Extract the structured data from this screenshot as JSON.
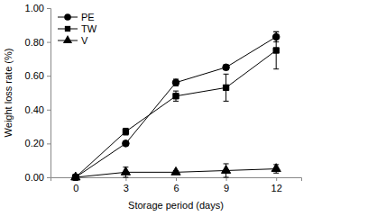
{
  "chart_data": {
    "type": "line",
    "x_label": "Storage period (days)",
    "y_label": "Weight loss rate (%)",
    "categories": [
      "0",
      "3",
      "6",
      "9",
      "12"
    ],
    "ylim": [
      0,
      1
    ],
    "yticks": [
      {
        "value": 0,
        "label": "0.00"
      },
      {
        "value": 0.2,
        "label": "0.20"
      },
      {
        "value": 0.4,
        "label": "0.40"
      },
      {
        "value": 0.6,
        "label": "0.60"
      },
      {
        "value": 0.8,
        "label": "0.80"
      },
      {
        "value": 1,
        "label": "1.00"
      }
    ],
    "grid": false,
    "legend": "top-left",
    "series": [
      {
        "name": "PE",
        "color": "#000000",
        "marker": "circle",
        "line_style": "solid",
        "values": [
          0,
          0.2,
          0.56,
          0.65,
          0.83
        ],
        "errors": [
          0,
          0.01,
          0.02,
          0.015,
          0.03
        ]
      },
      {
        "name": "TW",
        "color": "#000000",
        "marker": "square",
        "line_style": "solid",
        "values": [
          0,
          0.27,
          0.48,
          0.53,
          0.75
        ],
        "errors": [
          0,
          0.02,
          0.03,
          0.08,
          0.11
        ]
      },
      {
        "name": "V",
        "color": "#000000",
        "marker": "triangle",
        "line_style": "solid",
        "values": [
          0,
          0.03,
          0.03,
          0.04,
          0.05
        ],
        "errors": [
          0,
          0.03,
          0.01,
          0.04,
          0.025
        ]
      }
    ]
  }
}
